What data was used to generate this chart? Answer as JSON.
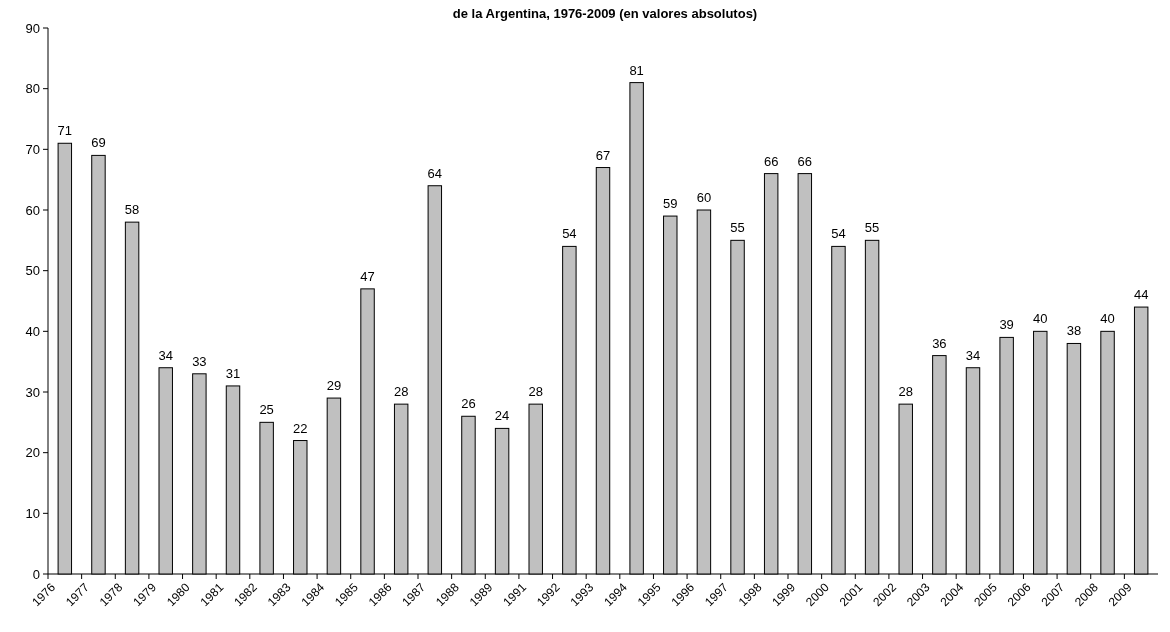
{
  "chart_data": {
    "type": "bar",
    "title": "de la Argentina, 1976-2009 (en valores absolutos)",
    "categories": [
      "1976",
      "1977",
      "1978",
      "1979",
      "1980",
      "1981",
      "1982",
      "1983",
      "1984",
      "1985",
      "1986",
      "1987",
      "1988",
      "1989",
      "1991",
      "1992",
      "1993",
      "1994",
      "1995",
      "1996",
      "1997",
      "1998",
      "1999",
      "2000",
      "2001",
      "2002",
      "2003",
      "2004",
      "2005",
      "2006",
      "2007",
      "2008",
      "2009"
    ],
    "values": [
      71,
      69,
      58,
      34,
      33,
      31,
      25,
      22,
      29,
      47,
      28,
      64,
      26,
      24,
      28,
      54,
      67,
      81,
      59,
      60,
      55,
      66,
      66,
      54,
      55,
      28,
      36,
      34,
      39,
      40,
      38,
      40,
      44
    ],
    "color": "#c0c0c0",
    "ylim": [
      0,
      90
    ],
    "yticks": [
      0,
      10,
      20,
      30,
      40,
      50,
      60,
      70,
      80,
      90
    ],
    "data_labels": true
  }
}
